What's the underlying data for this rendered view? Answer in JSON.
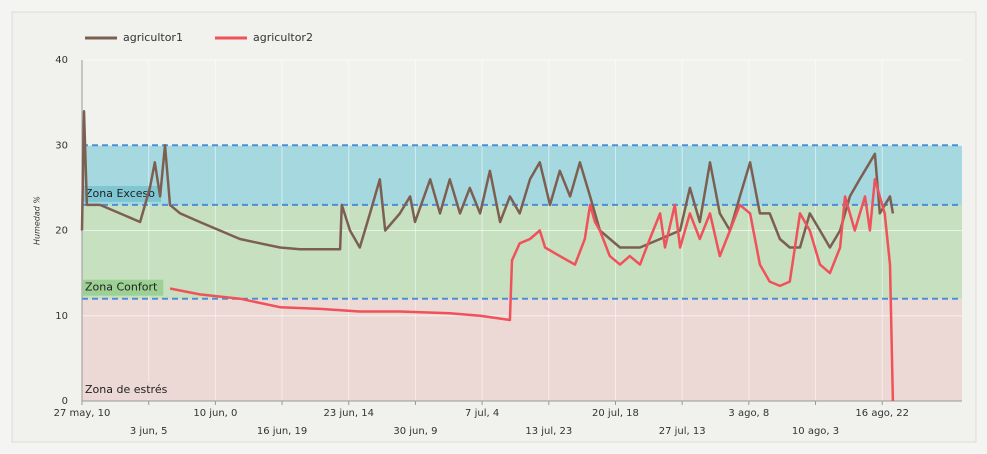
{
  "chart_data": {
    "type": "line",
    "y_label": "Humedad %",
    "xlim": [
      0,
      2151
    ],
    "xticks": [
      {
        "value": 0,
        "label": "27 may, 10"
      },
      {
        "value": 163,
        "label": "3 jun, 5"
      },
      {
        "value": 326,
        "label": "10 jun, 0"
      },
      {
        "value": 489,
        "label": "16 jun, 19"
      },
      {
        "value": 652,
        "label": "23 jun, 14"
      },
      {
        "value": 815,
        "label": "30 jun, 9"
      },
      {
        "value": 978,
        "label": "7 jul, 4"
      },
      {
        "value": 1141,
        "label": "13 jul, 23"
      },
      {
        "value": 1304,
        "label": "20 jul, 18"
      },
      {
        "value": 1467,
        "label": "27 jul, 13"
      },
      {
        "value": 1630,
        "label": "3 ago, 8"
      },
      {
        "value": 1793,
        "label": "10 ago, 3"
      },
      {
        "value": 1956,
        "label": "16 ago, 22"
      }
    ],
    "ylim": [
      0,
      40
    ],
    "yticks": [
      0,
      10,
      20,
      30,
      40
    ],
    "grid": true,
    "legend": "top-left",
    "zones": [
      {
        "label": "Zona de estrés",
        "from": 0,
        "to": 12,
        "color": "#ecd8d4",
        "line_color": "#8fb33f",
        "label_color": "#ecd8d4"
      },
      {
        "label": "Zona Confort",
        "from": 12,
        "to": 23,
        "color": "#c6e0c0",
        "line_color": "#4a8fd8",
        "label_color": "#9dd095"
      },
      {
        "label": "Zona Exceso",
        "from": 23,
        "to": 30,
        "color": "#a6d9df",
        "line_color": "#4a8fd8",
        "label_color": "#7ec7d2"
      }
    ],
    "series": [
      {
        "name": "agricultor1",
        "color": "#7d5f52",
        "x": [
          0,
          5,
          12,
          44,
          93,
          142,
          166,
          178,
          191,
          203,
          215,
          240,
          288,
          337,
          386,
          435,
          484,
          533,
          631,
          635,
          655,
          679,
          704,
          728,
          741,
          777,
          802,
          814,
          851,
          875,
          899,
          924,
          948,
          973,
          997,
          1022,
          1046,
          1070,
          1095,
          1119,
          1144,
          1168,
          1193,
          1217,
          1242,
          1266,
          1315,
          1364,
          1413,
          1462,
          1486,
          1510,
          1535,
          1559,
          1584,
          1608,
          1633,
          1657,
          1681,
          1706,
          1730,
          1755,
          1779,
          1804,
          1828,
          1853,
          1877,
          1901,
          1926,
          1938,
          1950,
          1975,
          1982
        ],
        "values": [
          20,
          34,
          23,
          23,
          22,
          21,
          25,
          28,
          24,
          30,
          23,
          22,
          21,
          20,
          19,
          18.5,
          18,
          17.8,
          17.8,
          23,
          20,
          18,
          22,
          26,
          20,
          22,
          24,
          21,
          26,
          22,
          26,
          22,
          25,
          22,
          27,
          21,
          24,
          22,
          26,
          28,
          23,
          27,
          24,
          28,
          24,
          20,
          18,
          18,
          19,
          20,
          25,
          21,
          28,
          22,
          20,
          24,
          28,
          22,
          22,
          19,
          18,
          18,
          22,
          20,
          18,
          20,
          24,
          26,
          28,
          29,
          22,
          24,
          22
        ]
      },
      {
        "name": "agricultor2",
        "color": "#f0515a",
        "x": [
          215,
          288,
          386,
          484,
          582,
          679,
          777,
          899,
          973,
          1046,
          1051,
          1070,
          1095,
          1119,
          1132,
          1168,
          1205,
          1229,
          1242,
          1254,
          1266,
          1290,
          1315,
          1339,
          1364,
          1388,
          1413,
          1425,
          1449,
          1462,
          1486,
          1510,
          1535,
          1559,
          1584,
          1608,
          1633,
          1657,
          1681,
          1706,
          1730,
          1755,
          1779,
          1804,
          1828,
          1853,
          1865,
          1889,
          1914,
          1926,
          1938,
          1962,
          1975,
          1982
        ],
        "values": [
          13.2,
          12.5,
          12,
          11,
          10.8,
          10.5,
          10.5,
          10.3,
          10,
          9.5,
          16.5,
          18.5,
          19,
          20,
          18,
          17,
          16,
          19,
          23,
          21,
          20,
          17,
          16,
          17,
          16,
          19,
          22,
          18,
          23,
          18,
          22,
          19,
          22,
          17,
          20,
          23,
          22,
          16,
          14,
          13.5,
          14,
          22,
          20,
          16,
          15,
          18,
          24,
          20,
          24,
          20,
          26,
          22,
          16,
          0
        ]
      }
    ]
  }
}
